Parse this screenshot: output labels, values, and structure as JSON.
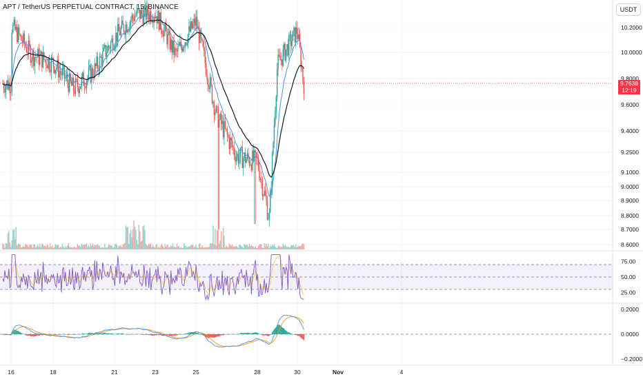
{
  "header": {
    "title": "APT / TetherUS PERPETUAL CONTRACT, 15, BINANCE",
    "currency": "USDT"
  },
  "price_tag": {
    "price": "9.7638",
    "countdown": "12:19"
  },
  "colors": {
    "up": "#26a69a",
    "down": "#ef5350",
    "ema_fast": "#4a90e2",
    "ema_slow": "#131722",
    "rsi_band": "#7e57c2",
    "rsi_line": "#7e57c2",
    "rsi_signal": "#f7c948",
    "grid": "#f0f3fa",
    "axis_text": "#131722",
    "price_line": "#f23645"
  },
  "chart_data": [
    {
      "type": "candlestick",
      "title": "APT / TetherUS PERPETUAL CONTRACT, 15, BINANCE",
      "ylim": [
        8.58,
        10.36
      ],
      "y_ticks": [
        "10.2000",
        "10.0000",
        "9.8000",
        "9.6000",
        "9.4000",
        "9.2500",
        "9.1000",
        "9.0000",
        "8.9000",
        "8.8000",
        "8.7000",
        "8.6000"
      ],
      "x_ticks": [
        "16",
        "18",
        "21",
        "23",
        "25",
        "28",
        "30",
        "Nov",
        "4"
      ],
      "last_price": 9.7638,
      "path_approx": [
        {
          "x": "16",
          "close": 10.22
        },
        {
          "x": "17",
          "close": 9.98
        },
        {
          "x": "18",
          "close": 9.92
        },
        {
          "x": "19",
          "close": 9.72
        },
        {
          "x": "20",
          "close": 9.86
        },
        {
          "x": "21",
          "close": 10.12
        },
        {
          "x": "22",
          "close": 10.3
        },
        {
          "x": "23",
          "close": 10.32
        },
        {
          "x": "24",
          "close": 9.98
        },
        {
          "x": "25",
          "close": 10.25
        },
        {
          "x": "26",
          "close": 9.52
        },
        {
          "x": "27",
          "close": 9.22
        },
        {
          "x": "28",
          "close": 9.18
        },
        {
          "x": "28.6",
          "close": 8.78
        },
        {
          "x": "29",
          "close": 9.9
        },
        {
          "x": "30",
          "close": 10.18
        },
        {
          "x": "30.3",
          "close": 9.76
        }
      ],
      "indicators": [
        "EMA fast",
        "EMA slow",
        "Volume"
      ]
    },
    {
      "type": "line",
      "name": "RSI",
      "y_ticks": [
        "75.00",
        "50.00",
        "25.00"
      ],
      "ylim": [
        10,
        90
      ],
      "band": [
        30,
        70
      ]
    },
    {
      "type": "line",
      "name": "Oscillator",
      "y_ticks": [
        "0.2000",
        "0.0000",
        "−0.2000"
      ],
      "ylim": [
        -0.24,
        0.24
      ]
    }
  ]
}
